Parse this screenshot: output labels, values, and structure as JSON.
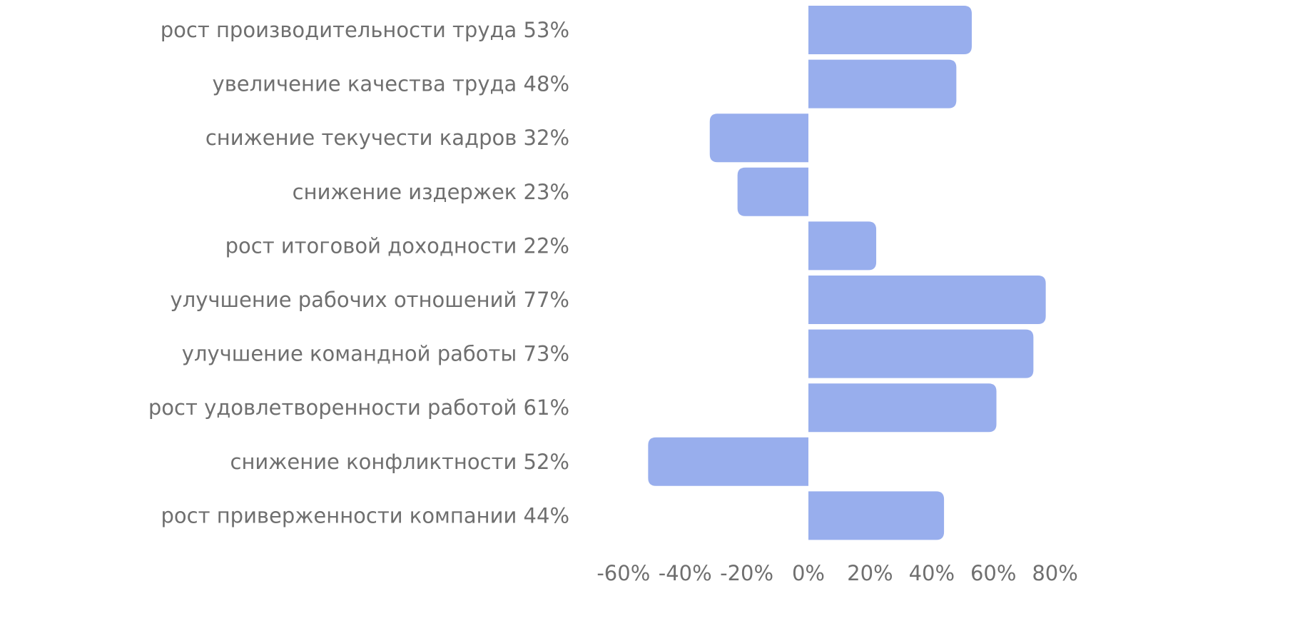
{
  "chart_data": {
    "type": "bar",
    "orientation": "horizontal",
    "categories": [
      "рост производительности труда 53%",
      "увеличение качества труда 48%",
      "снижение текучести кадров 32%",
      "снижение издержек 23%",
      "рост итоговой доходности 22%",
      "улучшение рабочих отношений 77%",
      "улучшение командной работы 73%",
      "рост удовлетворенности работой 61%",
      "снижение конфликтности 52%",
      "рост приверженности компании 44%"
    ],
    "values": [
      53,
      48,
      -32,
      -23,
      22,
      77,
      73,
      61,
      -52,
      44
    ],
    "xlim": [
      -60,
      80
    ],
    "xticks": [
      -60,
      -40,
      -20,
      0,
      20,
      40,
      60,
      80
    ],
    "xtick_labels": [
      "-60%",
      "-40%",
      "-20%",
      "0%",
      "20%",
      "40%",
      "60%",
      "80%"
    ],
    "title": "",
    "xlabel": "",
    "ylabel": "",
    "grid": false,
    "legend": "none",
    "colors": {
      "bar": "#98aeed",
      "text": "#6f6f6f",
      "background": "#ffffff"
    }
  }
}
